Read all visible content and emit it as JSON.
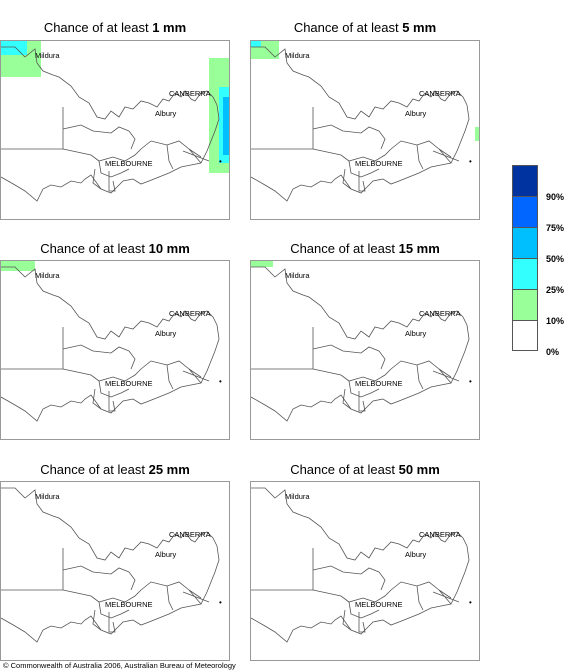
{
  "panels": [
    {
      "prefix": "Chance of at least ",
      "amount": "1 mm"
    },
    {
      "prefix": "Chance of at least ",
      "amount": "5 mm"
    },
    {
      "prefix": "Chance of at least ",
      "amount": "10 mm"
    },
    {
      "prefix": "Chance of at least ",
      "amount": "15 mm"
    },
    {
      "prefix": "Chance of at least ",
      "amount": "25 mm"
    },
    {
      "prefix": "Chance of at least ",
      "amount": "50 mm"
    }
  ],
  "places": {
    "mildura": "Mildura",
    "canberra": "CANBERRA",
    "albury": "Albury",
    "melbourne": "MELBOURNE"
  },
  "legend": {
    "labels": [
      "90%",
      "75%",
      "50%",
      "25%",
      "10%",
      "0%"
    ],
    "colors": [
      "#0033a0",
      "#0066ff",
      "#00bfff",
      "#33ffff",
      "#99ff99",
      "#ffffff"
    ]
  },
  "footer": {
    "copyright": "© Commonwealth of Australia 2006, Australian Bureau of Meteorology"
  }
}
